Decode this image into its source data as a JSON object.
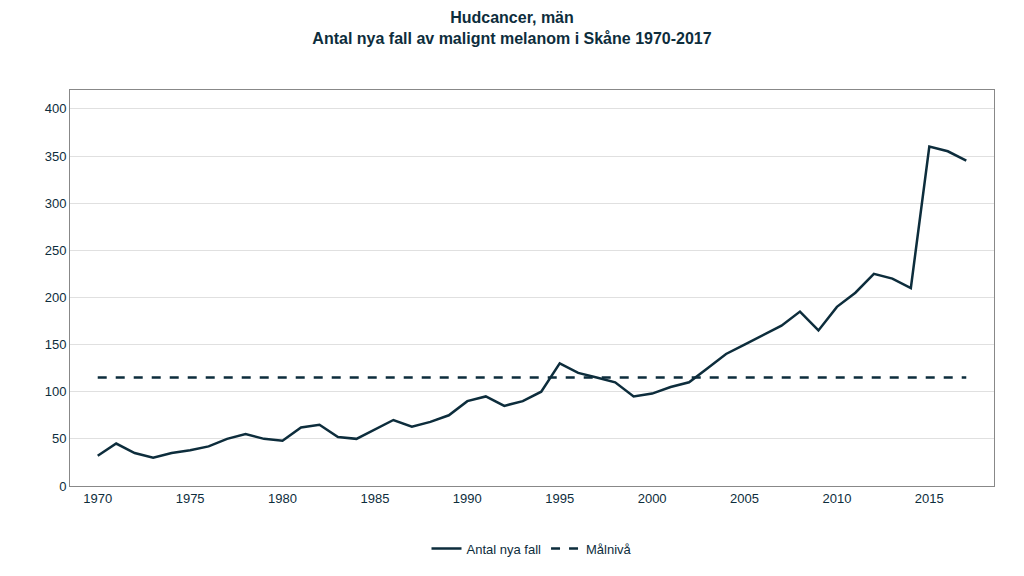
{
  "chart_data": {
    "type": "line",
    "title": "Hudcancer, män",
    "subtitle": "Antal nya fall av malignt melanom i Skåne 1970-2017",
    "color": "#0d2d3c",
    "x": [
      1970,
      1971,
      1972,
      1973,
      1974,
      1975,
      1976,
      1977,
      1978,
      1979,
      1980,
      1981,
      1982,
      1983,
      1984,
      1985,
      1986,
      1987,
      1988,
      1989,
      1990,
      1991,
      1992,
      1993,
      1994,
      1995,
      1996,
      1997,
      1998,
      1999,
      2000,
      2001,
      2002,
      2003,
      2004,
      2005,
      2006,
      2007,
      2008,
      2009,
      2010,
      2011,
      2012,
      2013,
      2014,
      2015,
      2016,
      2017
    ],
    "series": [
      {
        "name": "Antal nya fall",
        "color": "#0d2d3c",
        "line_style": "solid",
        "values": [
          32,
          45,
          35,
          30,
          35,
          38,
          42,
          50,
          55,
          50,
          48,
          62,
          65,
          52,
          50,
          60,
          70,
          63,
          68,
          75,
          90,
          95,
          85,
          90,
          100,
          130,
          120,
          115,
          110,
          95,
          98,
          105,
          110,
          125,
          140,
          150,
          160,
          170,
          185,
          165,
          190,
          205,
          225,
          220,
          210,
          360,
          355,
          345
        ]
      },
      {
        "name": "Målnivå",
        "color": "#0d2d3c",
        "line_style": "dashed",
        "values": [
          115,
          115,
          115,
          115,
          115,
          115,
          115,
          115,
          115,
          115,
          115,
          115,
          115,
          115,
          115,
          115,
          115,
          115,
          115,
          115,
          115,
          115,
          115,
          115,
          115,
          115,
          115,
          115,
          115,
          115,
          115,
          115,
          115,
          115,
          115,
          115,
          115,
          115,
          115,
          115,
          115,
          115,
          115,
          115,
          115,
          115,
          115,
          115
        ]
      }
    ],
    "xlim": [
      1968.5,
      2018.5
    ],
    "xticks": [
      1970,
      1975,
      1980,
      1985,
      1990,
      1995,
      2000,
      2005,
      2010,
      2015
    ],
    "ylim": [
      0,
      420
    ],
    "yticks": [
      0,
      50,
      100,
      150,
      200,
      250,
      300,
      350,
      400
    ],
    "grid": "y",
    "legend": "bottom"
  }
}
